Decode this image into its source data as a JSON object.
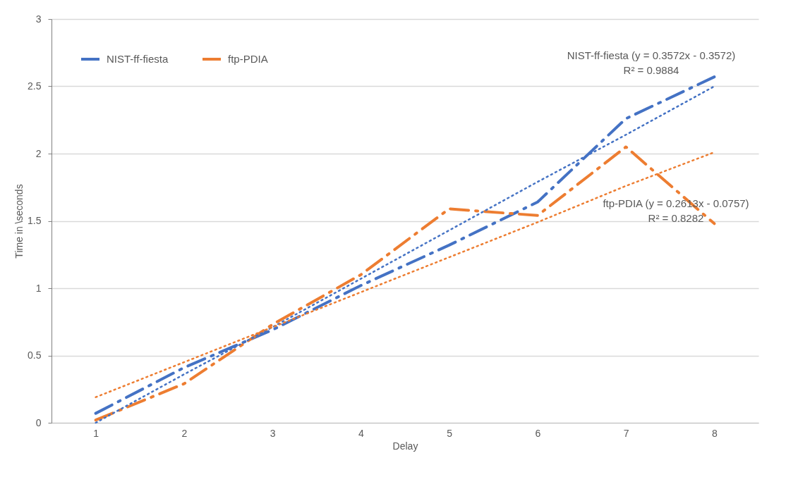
{
  "chart_data": {
    "type": "line",
    "xlabel": "Delay",
    "ylabel": "Time in \\seconds",
    "x": [
      1,
      2,
      3,
      4,
      5,
      6,
      7,
      8
    ],
    "xlim": [
      0.5,
      8.5
    ],
    "xticks": [
      1,
      2,
      3,
      4,
      5,
      6,
      7,
      8
    ],
    "ylim": [
      0,
      3
    ],
    "yticks": [
      0,
      0.5,
      1,
      1.5,
      2,
      2.5,
      3
    ],
    "grid": "y",
    "legend": "top left",
    "marker": "none",
    "series": [
      {
        "name": "NIST-ff-fiesta",
        "color": "#4472c4",
        "line_style": "dashed",
        "values": [
          0.07,
          0.41,
          0.69,
          1.02,
          1.32,
          1.64,
          2.26,
          2.57
        ]
      },
      {
        "name": "ftp-PDIA",
        "color": "#ed7d31",
        "line_style": "dashed",
        "values": [
          0.02,
          0.29,
          0.73,
          1.1,
          1.59,
          1.54,
          2.05,
          1.48
        ]
      },
      {
        "type": "line",
        "color": "#4472c4",
        "line_style": "dotted",
        "values": [
          0,
          0.36,
          0.71,
          1.07,
          1.43,
          1.79,
          2.14,
          2.5
        ]
      },
      {
        "type": "line",
        "color": "#ed7d31",
        "line_style": "dotted",
        "values": [
          0.19,
          0.45,
          0.71,
          0.97,
          1.23,
          1.49,
          1.76,
          2.01
        ]
      }
    ],
    "annotations": [
      "NIST-ff-fiesta (y = 0.3572x - 0.3572)\nR² = 0.9884",
      "ftp-PDIA (y = 0.2613x - 0.0757)\nR² = 0.8282"
    ]
  }
}
